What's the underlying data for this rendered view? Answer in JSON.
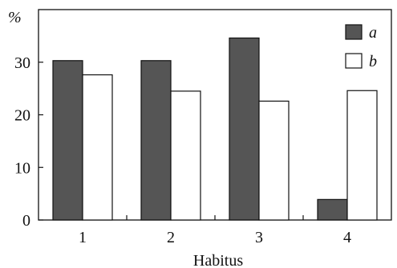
{
  "chart_data": {
    "type": "bar",
    "ylabel": "%",
    "xlabel": "Habitus",
    "categories": [
      "1",
      "2",
      "3",
      "4"
    ],
    "ylim": [
      0,
      40
    ],
    "yticks": [
      0,
      10,
      20,
      30
    ],
    "grid": false,
    "legend_position": "top-right",
    "series": [
      {
        "name": "a",
        "color": "#555555",
        "values": [
          30.3,
          30.3,
          34.6,
          3.9
        ]
      },
      {
        "name": "b",
        "color": "#ffffff",
        "values": [
          27.6,
          24.5,
          22.6,
          24.6
        ]
      }
    ]
  }
}
